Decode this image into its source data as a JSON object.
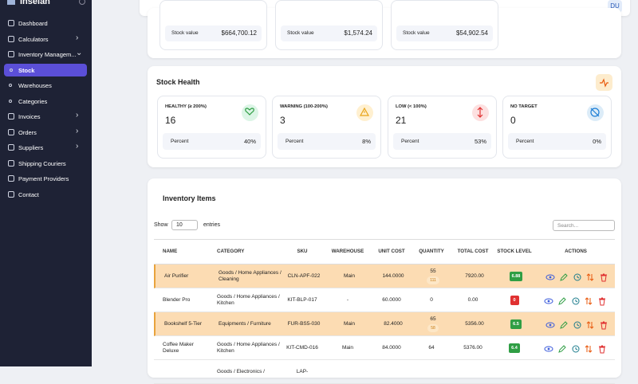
{
  "sidebar": {
    "brand": "Inselan",
    "menu": [
      {
        "label": "Dashboard"
      },
      {
        "label": "Calculators"
      },
      {
        "label": "Inventory Managem..."
      },
      {
        "label": "Stock"
      },
      {
        "label": "Warehouses"
      },
      {
        "label": "Categories"
      },
      {
        "label": "Invoices"
      },
      {
        "label": "Orders"
      },
      {
        "label": "Suppliers"
      },
      {
        "label": "Shipping Couriers"
      },
      {
        "label": "Payment Providers"
      },
      {
        "label": "Contact"
      }
    ]
  },
  "header": {
    "avatar": "DU"
  },
  "stock_values": [
    {
      "label": "Stock value",
      "value": "$664,700.12"
    },
    {
      "label": "Stock value",
      "value": "$1,574.24"
    },
    {
      "label": "Stock value",
      "value": "$54,902.54"
    }
  ],
  "stock_health": {
    "title": "Stock Health",
    "cards": [
      {
        "label": "HEALTHY (≥ 200%)",
        "count": "16",
        "percent_label": "Percent",
        "percent": "40%",
        "color": "#2f9e44"
      },
      {
        "label": "WARNING (100-200%)",
        "count": "3",
        "percent_label": "Percent",
        "percent": "8%",
        "color": "#e8a317"
      },
      {
        "label": "LOW (< 100%)",
        "count": "21",
        "percent_label": "Percent",
        "percent": "53%",
        "color": "#e03131"
      },
      {
        "label": "NO TARGET",
        "count": "0",
        "percent_label": "Percent",
        "percent": "0%",
        "color": "#1c7ed6"
      }
    ]
  },
  "inventory": {
    "title": "Inventory Items",
    "show": "Show",
    "page_size": "10",
    "entries": "entries",
    "search_placeholder": "Search...",
    "columns": [
      "NAME",
      "CATEGORY",
      "SKU",
      "WAREHOUSE",
      "UNIT COST",
      "QUANTITY",
      "TOTAL COST",
      "STOCK LEVEL",
      "ACTIONS"
    ],
    "rows": [
      {
        "name": "Air Purifier",
        "category": "Goods / Home Appliances / Cleaning",
        "sku": "CLN-APF-022",
        "warehouse": "Main",
        "unit_cost": "144.0000",
        "quantity": "55",
        "quantity_badge": "111",
        "total_cost": "7920.00",
        "stock_level": "6.88",
        "level_color": "#2f9e44",
        "highlight": true
      },
      {
        "name": "Blender Pro",
        "category": "Goods / Home Appliances / Kitchen",
        "sku": "KIT-BLP-017",
        "warehouse": "-",
        "unit_cost": "60.0000",
        "quantity": "0",
        "total_cost": "0.00",
        "stock_level": "0",
        "level_color": "#e03131",
        "highlight": false
      },
      {
        "name": "Bookshelf 5-Tier",
        "category": "Equipments / Furniture",
        "sku": "FUR-BS5-030",
        "warehouse": "Main",
        "unit_cost": "82.4000",
        "quantity": "65",
        "quantity_badge": "58",
        "total_cost": "5356.00",
        "stock_level": "6.5",
        "level_color": "#2f9e44",
        "highlight": true
      },
      {
        "name": "Coffee Maker Deluxe",
        "category": "Goods / Home Appliances / Kitchen",
        "sku": "KIT-CMD-016",
        "warehouse": "Main",
        "unit_cost": "84.0000",
        "quantity": "64",
        "total_cost": "5376.00",
        "stock_level": "6.4",
        "level_color": "#2f9e44",
        "highlight": false
      },
      {
        "name": "",
        "category": "Goods / Electronics /",
        "sku": "LAP-",
        "warehouse": "",
        "unit_cost": "",
        "quantity": "",
        "total_cost": "",
        "stock_level": "",
        "level_color": "#2f9e44",
        "highlight": false
      }
    ]
  }
}
